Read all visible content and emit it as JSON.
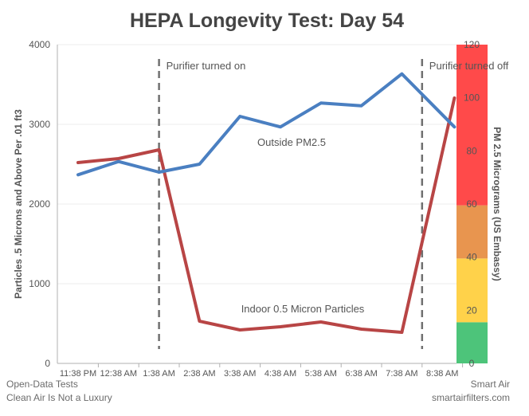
{
  "chart_data": {
    "type": "line",
    "title": "HEPA Longevity Test: Day 54",
    "xlabel": "",
    "ylabel": "Particles .5 Microns and Above Per .01 ft3",
    "y2label": "PM 2.5 Micrograms (US Embassy)",
    "categories": [
      "11:38 PM",
      "12:38 AM",
      "1:38 AM",
      "2:38 AM",
      "3:38 AM",
      "4:38 AM",
      "5:38 AM",
      "6:38 AM",
      "7:38 AM",
      "8:38 AM"
    ],
    "x_positions": [
      0,
      1,
      2,
      3,
      4,
      5,
      6,
      7,
      8,
      9
    ],
    "ylim": [
      0,
      4000
    ],
    "yticks": [
      0,
      1000,
      2000,
      3000,
      4000
    ],
    "y2lim": [
      0,
      120
    ],
    "y2ticks": [
      0,
      20,
      40,
      60,
      80,
      100,
      120
    ],
    "grid": true,
    "series": [
      {
        "name": "Indoor 0.5 Micron Particles",
        "color": "#b84545",
        "points": [
          [
            0,
            2520
          ],
          [
            1,
            2570
          ],
          [
            2,
            2680
          ],
          [
            3,
            530
          ],
          [
            4,
            420
          ],
          [
            5,
            460
          ],
          [
            6,
            520
          ],
          [
            7,
            430
          ],
          [
            8,
            390
          ],
          [
            9.3,
            3330
          ]
        ]
      },
      {
        "name": "Outside PM2.5",
        "color": "#4a7fc1",
        "axis": "right",
        "points": [
          [
            0,
            71
          ],
          [
            1,
            76
          ],
          [
            2,
            72
          ],
          [
            3,
            75
          ],
          [
            4,
            93
          ],
          [
            5,
            89
          ],
          [
            6,
            98
          ],
          [
            7,
            97
          ],
          [
            8,
            109
          ],
          [
            9.3,
            89
          ]
        ]
      }
    ],
    "annotations": [
      {
        "label": "Purifier turned on",
        "x": 2
      },
      {
        "label": "Purifier turned off",
        "x": 8.5
      }
    ],
    "aqi_bands": [
      {
        "from": 0,
        "to": 15.5,
        "color": "#4dc47a"
      },
      {
        "from": 15.5,
        "to": 39.5,
        "color": "#ffd24a"
      },
      {
        "from": 39.5,
        "to": 59.5,
        "color": "#e8954f"
      },
      {
        "from": 59.5,
        "to": 120,
        "color": "#ff4a4a"
      }
    ]
  },
  "footer": {
    "left_line1": "Open-Data Tests",
    "left_line2": "Clean Air Is Not a Luxury",
    "right_line1": "Smart Air",
    "right_line2": "smartairfilters.com"
  }
}
